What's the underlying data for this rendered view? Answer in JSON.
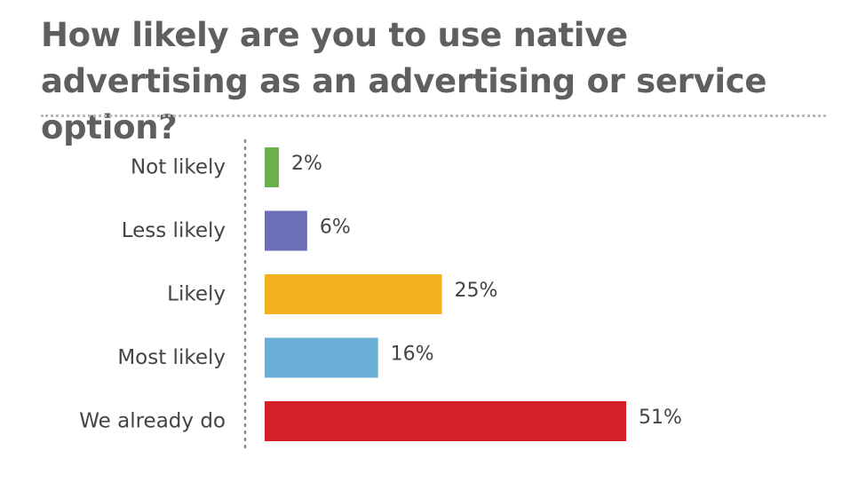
{
  "chart_data": {
    "type": "bar",
    "orientation": "horizontal",
    "title": "How likely are you to use native advertising as an advertising or service option?",
    "categories": [
      "Not likely",
      "Less likely",
      "Likely",
      "Most likely",
      "We already do"
    ],
    "values": [
      2,
      6,
      25,
      16,
      51
    ],
    "value_labels": [
      "2%",
      "6%",
      "25%",
      "16%",
      "51%"
    ],
    "colors": [
      "#6ab04c",
      "#6b6fb5",
      "#f2b01e",
      "#6bafd6",
      "#d42027"
    ],
    "xlim": [
      0,
      51
    ],
    "grid": false,
    "legend": "none"
  }
}
